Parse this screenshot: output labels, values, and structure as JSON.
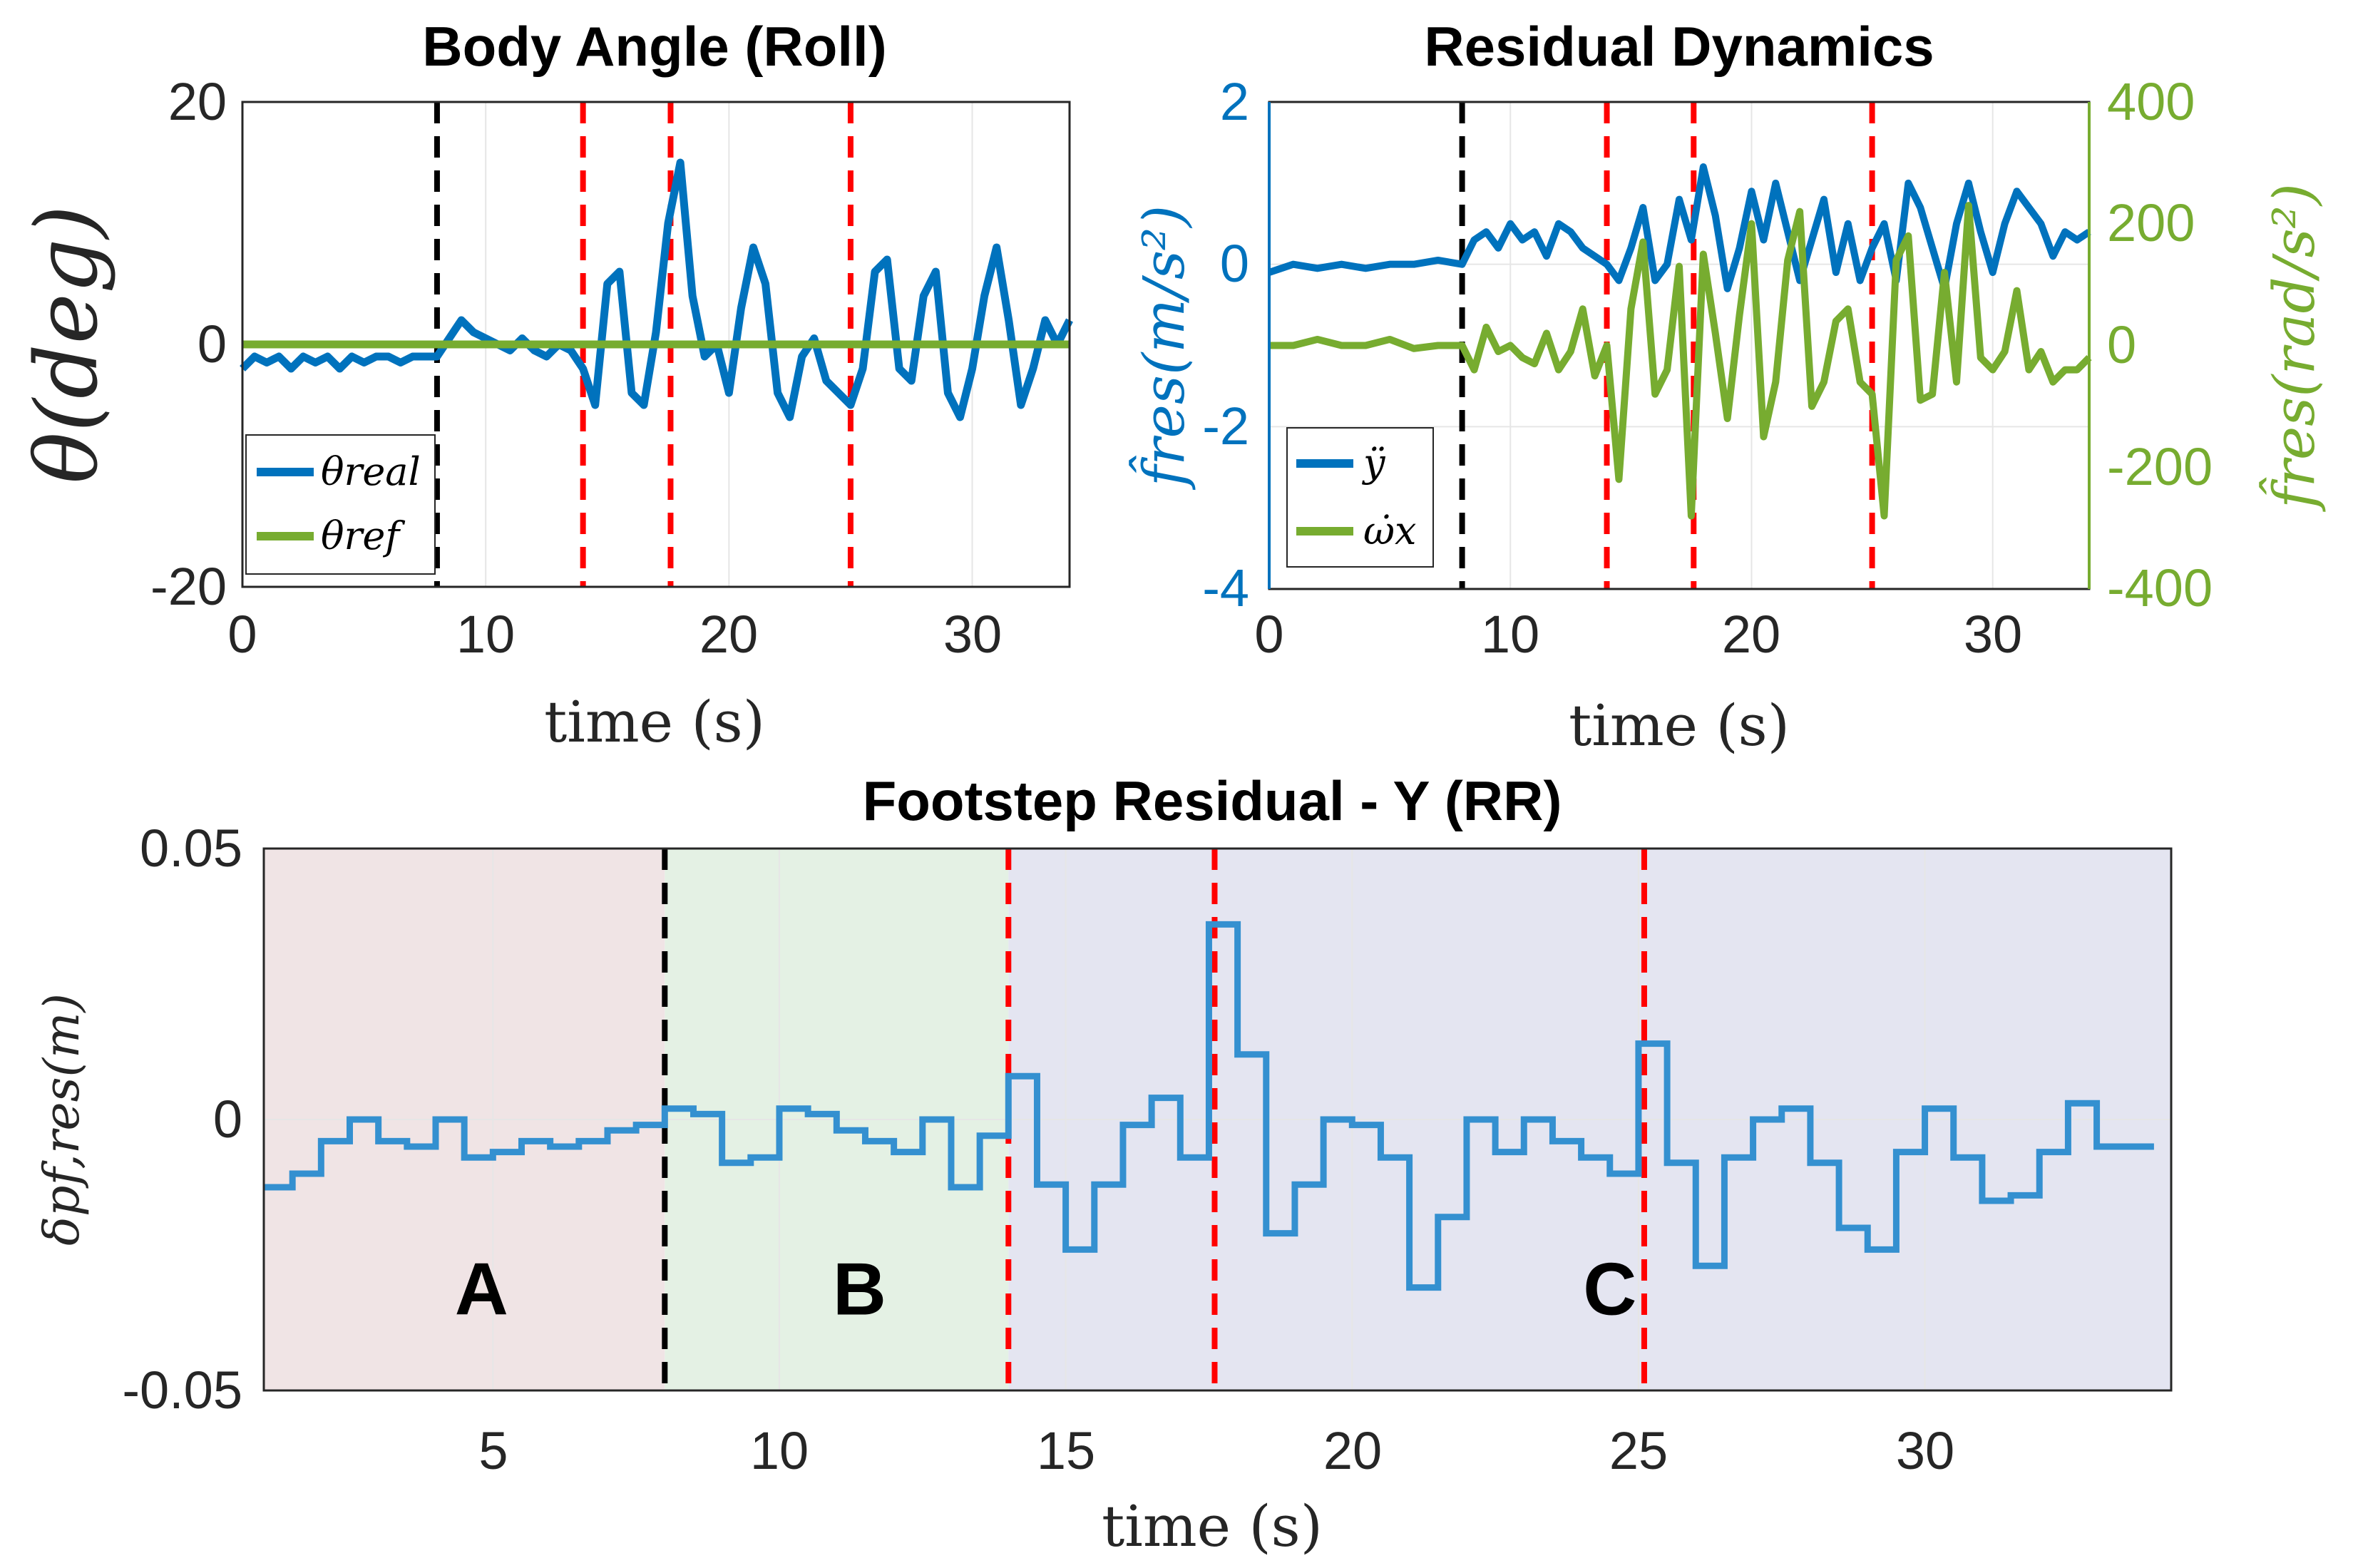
{
  "colors": {
    "blue": "#0072BD",
    "green": "#77AC30",
    "red_marker": "#FF0000",
    "black_marker": "#000000",
    "region_a": "#F0E4E5",
    "region_b": "#E4F1E4",
    "region_c": "#E4E5F1",
    "grid": "#E6E6E6"
  },
  "chart_data": [
    {
      "id": "roll",
      "type": "line",
      "title": "Body Angle (Roll)",
      "xlabel": "time (s)",
      "ylabel": "θ(deg)",
      "xlim": [
        0,
        34
      ],
      "ylim": [
        -20,
        20
      ],
      "xticks": [
        "0",
        "10",
        "20",
        "30"
      ],
      "yticks": [
        "20",
        "0",
        "-20"
      ],
      "grid": true,
      "legend_position": "bottom-left",
      "vlines": [
        {
          "x": 8,
          "color": "black"
        },
        {
          "x": 14,
          "color": "red"
        },
        {
          "x": 17.6,
          "color": "red"
        },
        {
          "x": 25,
          "color": "red"
        }
      ],
      "series": [
        {
          "name": "θreal",
          "color": "blue",
          "x": [
            0,
            0.5,
            1,
            1.5,
            2,
            2.5,
            3,
            3.5,
            4,
            4.5,
            5,
            5.5,
            6,
            6.5,
            7,
            7.5,
            8,
            8.5,
            9,
            9.5,
            10,
            10.5,
            11,
            11.5,
            12,
            12.5,
            13,
            13.5,
            14,
            14.5,
            15,
            15.5,
            16,
            16.5,
            17,
            17.5,
            18,
            18.5,
            19,
            19.5,
            20,
            20.5,
            21,
            21.5,
            22,
            22.5,
            23,
            23.5,
            24,
            24.5,
            25,
            25.5,
            26,
            26.5,
            27,
            27.5,
            28,
            28.5,
            29,
            29.5,
            30,
            30.5,
            31,
            31.5,
            32,
            32.5,
            33,
            33.5,
            34
          ],
          "y": [
            -2,
            -1,
            -1.5,
            -1,
            -2,
            -1,
            -1.5,
            -1,
            -2,
            -1,
            -1.5,
            -1,
            -1,
            -1.5,
            -1,
            -1,
            -1,
            0.5,
            2,
            1,
            0.5,
            0,
            -0.5,
            0.5,
            -0.5,
            -1,
            0,
            -0.5,
            -2,
            -5,
            5,
            6,
            -4,
            -5,
            1,
            10,
            15,
            4,
            -1,
            0,
            -4,
            3,
            8,
            5,
            -4,
            -6,
            -1,
            0.5,
            -3,
            -4,
            -5,
            -2,
            6,
            7,
            -2,
            -3,
            4,
            6,
            -4,
            -6,
            -2,
            4,
            8,
            2,
            -5,
            -2,
            2,
            0,
            2
          ]
        },
        {
          "name": "θref",
          "color": "green",
          "x": [
            0,
            34
          ],
          "y": [
            0,
            0
          ]
        }
      ]
    },
    {
      "id": "residual",
      "type": "line",
      "title": "Residual Dynamics",
      "xlabel": "time (s)",
      "ylabel_left": "f̂res(m/s²)",
      "ylabel_right": "f̂res(rad/s²)",
      "xlim": [
        0,
        34
      ],
      "ylim_left": [
        -4,
        2
      ],
      "ylim_right": [
        -400,
        400
      ],
      "xticks": [
        "0",
        "10",
        "20",
        "30"
      ],
      "yticks_left": [
        "2",
        "0",
        "-2",
        "-4"
      ],
      "yticks_right": [
        "400",
        "200",
        "0",
        "-200",
        "-400"
      ],
      "grid": true,
      "legend_position": "bottom-left",
      "vlines": [
        {
          "x": 8,
          "color": "black"
        },
        {
          "x": 14,
          "color": "red"
        },
        {
          "x": 17.6,
          "color": "red"
        },
        {
          "x": 25,
          "color": "red"
        }
      ],
      "series": [
        {
          "name": "ÿ",
          "axis": "left",
          "color": "blue",
          "x": [
            0,
            1,
            2,
            3,
            4,
            5,
            6,
            7,
            8,
            8.5,
            9,
            9.5,
            10,
            10.5,
            11,
            11.5,
            12,
            12.5,
            13,
            13.5,
            14,
            14.5,
            15,
            15.5,
            16,
            16.5,
            17,
            17.5,
            18,
            18.5,
            19,
            19.5,
            20,
            20.5,
            21,
            21.5,
            22,
            22.5,
            23,
            23.5,
            24,
            24.5,
            25,
            25.5,
            26,
            26.5,
            27,
            27.5,
            28,
            28.5,
            29,
            29.5,
            30,
            30.5,
            31,
            31.5,
            32,
            32.5,
            33,
            33.5,
            34
          ],
          "y": [
            -0.1,
            0,
            -0.05,
            0,
            -0.05,
            0,
            0,
            0.05,
            0,
            0.3,
            0.4,
            0.2,
            0.5,
            0.3,
            0.4,
            0.1,
            0.5,
            0.4,
            0.2,
            0.1,
            0,
            -0.2,
            0.2,
            0.7,
            -0.2,
            0,
            0.8,
            0.3,
            1.2,
            0.6,
            -0.3,
            0.2,
            0.9,
            0.3,
            1,
            0.4,
            -0.2,
            0.3,
            0.8,
            -0.1,
            0.5,
            -0.2,
            0.2,
            0.5,
            -0.2,
            1,
            0.7,
            0.2,
            -0.3,
            0.5,
            1,
            0.4,
            -0.1,
            0.5,
            0.9,
            0.7,
            0.5,
            0.1,
            0.4,
            0.3,
            0.4
          ]
        },
        {
          "name": "ω̇x",
          "axis": "right",
          "color": "green",
          "x": [
            0,
            1,
            2,
            3,
            4,
            5,
            6,
            7,
            8,
            8.5,
            9,
            9.5,
            10,
            10.5,
            11,
            11.5,
            12,
            12.5,
            13,
            13.5,
            14,
            14.5,
            15,
            15.5,
            16,
            16.5,
            17,
            17.5,
            18,
            18.5,
            19,
            19.5,
            20,
            20.5,
            21,
            21.5,
            22,
            22.5,
            23,
            23.5,
            24,
            24.5,
            25,
            25.5,
            26,
            26.5,
            27,
            27.5,
            28,
            28.5,
            29,
            29.5,
            30,
            30.5,
            31,
            31.5,
            32,
            32.5,
            33,
            33.5,
            34
          ],
          "y": [
            0,
            0,
            10,
            0,
            0,
            10,
            -5,
            0,
            0,
            -40,
            30,
            -10,
            0,
            -20,
            -30,
            20,
            -40,
            -10,
            60,
            -50,
            0,
            -220,
            60,
            170,
            -80,
            -40,
            130,
            -280,
            150,
            20,
            -120,
            50,
            200,
            -150,
            -60,
            140,
            220,
            -100,
            -60,
            40,
            60,
            -60,
            -80,
            -280,
            140,
            180,
            -90,
            -80,
            120,
            -60,
            230,
            -20,
            -40,
            -10,
            90,
            -40,
            -10,
            -60,
            -40,
            -40,
            -20
          ]
        }
      ]
    },
    {
      "id": "footstep",
      "type": "line",
      "title": "Footstep Residual - Y (RR)",
      "xlabel": "time (s)",
      "ylabel": "δpf,res(m)",
      "xlim": [
        1,
        34.3
      ],
      "ylim": [
        -0.05,
        0.05
      ],
      "xticks": [
        "5",
        "10",
        "15",
        "20",
        "25",
        "30"
      ],
      "yticks": [
        "0.05",
        "0",
        "-0.05"
      ],
      "grid": true,
      "regions": [
        {
          "label": "A",
          "x0": 1,
          "x1": 8,
          "label_x": 4.8,
          "color": "region_a"
        },
        {
          "label": "B",
          "x0": 8,
          "x1": 14,
          "label_x": 11.4,
          "color": "region_b"
        },
        {
          "label": "C",
          "x0": 14,
          "x1": 34.3,
          "label_x": 24.5,
          "color": "region_c"
        }
      ],
      "vlines": [
        {
          "x": 8,
          "color": "black"
        },
        {
          "x": 14,
          "color": "red"
        },
        {
          "x": 17.6,
          "color": "red"
        },
        {
          "x": 25.1,
          "color": "red"
        }
      ],
      "series": [
        {
          "name": "δpf,res",
          "color": "blue",
          "step": true,
          "x": [
            1,
            1.5,
            2,
            2.5,
            3,
            3.5,
            4,
            4.5,
            5,
            5.5,
            6,
            6.5,
            7,
            7.5,
            8,
            8.5,
            9,
            9.5,
            10,
            10.5,
            11,
            11.5,
            12,
            12.5,
            13,
            13.5,
            14,
            14.5,
            15,
            15.5,
            16,
            16.5,
            17,
            17.5,
            18,
            18.5,
            19,
            19.5,
            20,
            20.5,
            21,
            21.5,
            22,
            22.5,
            23,
            23.5,
            24,
            24.5,
            25,
            25.5,
            26,
            26.5,
            27,
            27.5,
            28,
            28.5,
            29,
            29.5,
            30,
            30.5,
            31,
            31.5,
            32,
            32.5,
            33,
            33.5,
            34
          ],
          "y": [
            -0.0125,
            -0.01,
            -0.004,
            0,
            -0.004,
            -0.005,
            0,
            -0.007,
            -0.006,
            -0.004,
            -0.005,
            -0.004,
            -0.002,
            -0.001,
            0.002,
            0.001,
            -0.008,
            -0.007,
            0.002,
            0.001,
            -0.002,
            -0.004,
            -0.006,
            0,
            -0.0125,
            -0.003,
            0.008,
            -0.012,
            -0.024,
            -0.012,
            -0.001,
            0.004,
            -0.007,
            0.036,
            0.012,
            -0.021,
            -0.012,
            0,
            -0.001,
            -0.007,
            -0.031,
            -0.018,
            0,
            -0.006,
            0,
            -0.004,
            -0.007,
            -0.01,
            0.014,
            -0.008,
            -0.027,
            -0.007,
            0,
            0.002,
            -0.008,
            -0.02,
            -0.024,
            -0.006,
            0.002,
            -0.007,
            -0.015,
            -0.014,
            -0.006,
            0.003,
            -0.005,
            -0.005,
            -0.005
          ]
        }
      ]
    }
  ]
}
